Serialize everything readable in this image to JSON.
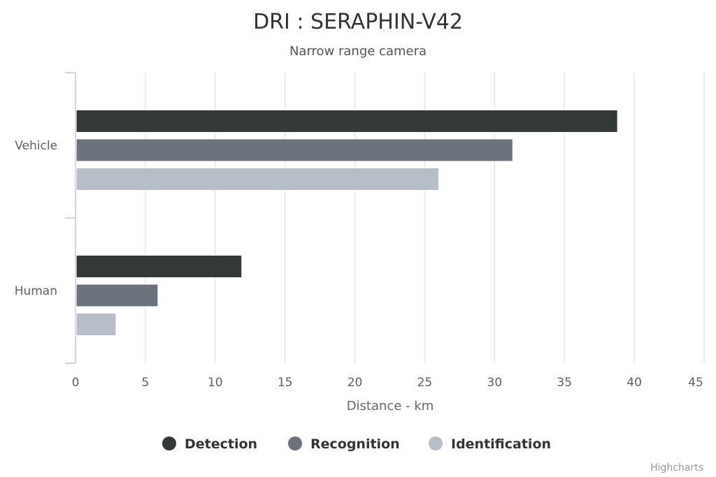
{
  "chart_data": {
    "type": "bar",
    "orientation": "horizontal",
    "title": "DRI : SERAPHIN-V42",
    "subtitle": "Narrow range camera",
    "categories": [
      "Vehicle",
      "Human"
    ],
    "series": [
      {
        "name": "Detection",
        "color": "#333936",
        "values": [
          38.8,
          11.9
        ]
      },
      {
        "name": "Recognition",
        "color": "#6b737c",
        "values": [
          31.3,
          5.9
        ]
      },
      {
        "name": "Identification",
        "color": "#b6bec7",
        "values": [
          26.0,
          2.9
        ]
      }
    ],
    "xlabel": "Distance - km",
    "ylabel": "",
    "xlim": [
      0,
      45
    ],
    "xticks": [
      "0",
      "5",
      "10",
      "15",
      "20",
      "25",
      "30",
      "35",
      "40",
      "45"
    ],
    "grid": true,
    "legend_position": "bottom-center",
    "credits": "Highcharts"
  }
}
